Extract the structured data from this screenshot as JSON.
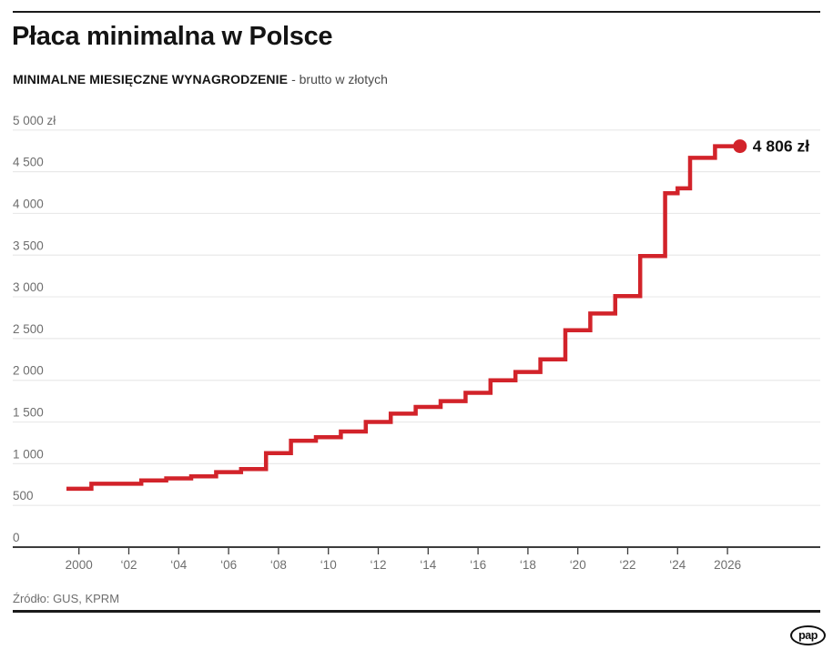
{
  "header": {
    "title": "Płaca minimalna w Polsce",
    "subtitle_bold": "MINIMALNE MIESIĘCZNE WYNAGRODZENIE",
    "subtitle_rest": "- brutto w złotych"
  },
  "footer": {
    "source": "Źródło: GUS, KPRM",
    "logo_text": "pap"
  },
  "colors": {
    "line_red": "#d2232a",
    "axis_dark": "#3c3c3c",
    "grid_light": "#e9e9e9",
    "tick_label": "#6e6e6e",
    "annotation_text": "#111111"
  },
  "chart_data": {
    "type": "line",
    "subtype": "step-after",
    "title": "Płaca minimalna w Polsce",
    "series_name": "Minimalne miesięczne wynagrodzenie brutto (zł)",
    "unit": "zł",
    "ylim": [
      0,
      5000
    ],
    "x_range": [
      2000,
      2027
    ],
    "grid": "horizontal",
    "legend": "none",
    "y_ticks": [
      {
        "value": 5000,
        "label": "5 000 zł"
      },
      {
        "value": 4500,
        "label": "4 500"
      },
      {
        "value": 4000,
        "label": "4 000"
      },
      {
        "value": 3500,
        "label": "3 500"
      },
      {
        "value": 3000,
        "label": "3 000"
      },
      {
        "value": 2500,
        "label": "2 500"
      },
      {
        "value": 2000,
        "label": "2 000"
      },
      {
        "value": 1500,
        "label": "1 500"
      },
      {
        "value": 1000,
        "label": "1 000"
      },
      {
        "value": 500,
        "label": "500"
      },
      {
        "value": 0,
        "label": "0"
      }
    ],
    "x_ticks": [
      {
        "year": 2000,
        "label": "2000"
      },
      {
        "year": 2002,
        "label": "‘02"
      },
      {
        "year": 2004,
        "label": "‘04"
      },
      {
        "year": 2006,
        "label": "‘06"
      },
      {
        "year": 2008,
        "label": "‘08"
      },
      {
        "year": 2010,
        "label": "‘10"
      },
      {
        "year": 2012,
        "label": "‘12"
      },
      {
        "year": 2014,
        "label": "‘14"
      },
      {
        "year": 2016,
        "label": "‘16"
      },
      {
        "year": 2018,
        "label": "‘18"
      },
      {
        "year": 2020,
        "label": "‘20"
      },
      {
        "year": 2022,
        "label": "‘22"
      },
      {
        "year": 2024,
        "label": "‘24"
      },
      {
        "year": 2026,
        "label": "2026"
      }
    ],
    "points": [
      [
        2000,
        700
      ],
      [
        2001,
        760
      ],
      [
        2002,
        760
      ],
      [
        2003,
        800
      ],
      [
        2004,
        824
      ],
      [
        2005,
        849
      ],
      [
        2006,
        899
      ],
      [
        2007,
        936
      ],
      [
        2008,
        1126
      ],
      [
        2009,
        1276
      ],
      [
        2010,
        1317
      ],
      [
        2011,
        1386
      ],
      [
        2012,
        1500
      ],
      [
        2013,
        1600
      ],
      [
        2014,
        1680
      ],
      [
        2015,
        1750
      ],
      [
        2016,
        1850
      ],
      [
        2017,
        2000
      ],
      [
        2018,
        2100
      ],
      [
        2019,
        2250
      ],
      [
        2020,
        2600
      ],
      [
        2021,
        2800
      ],
      [
        2022,
        3010
      ],
      [
        2023,
        3490
      ],
      [
        2024,
        4242
      ],
      [
        2024.5,
        4300
      ],
      [
        2025,
        4666
      ],
      [
        2026,
        4806
      ]
    ],
    "x_end": 2027,
    "endpoint": {
      "value": 4806,
      "label": "4 806 zł"
    }
  }
}
